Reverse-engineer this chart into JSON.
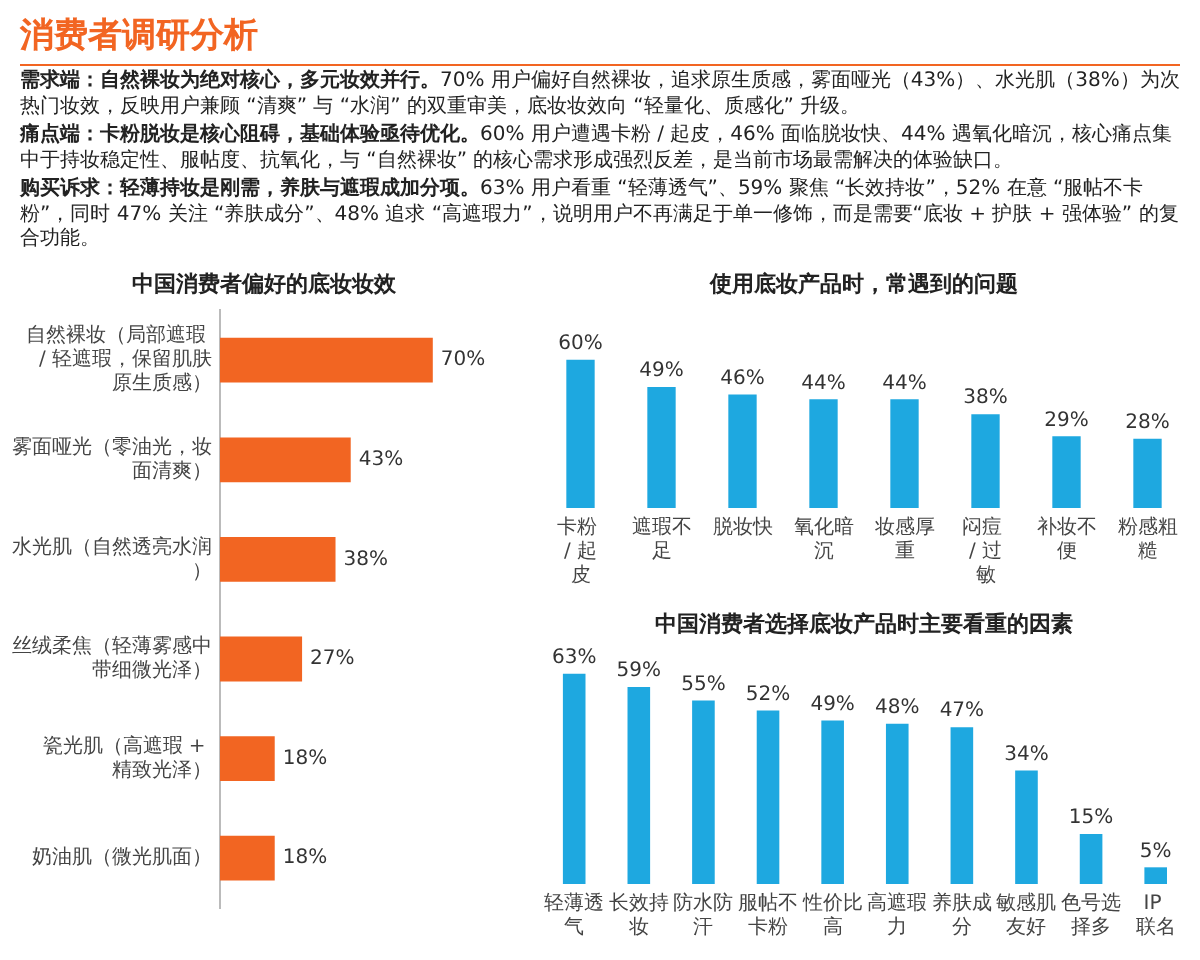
{
  "chart_data": [
    {
      "type": "other",
      "title": "消费者调研分析",
      "annotations": [
        "需求端：自然裸妆为绝对核心，多元妆效并行。",
        "70% 用户偏好自然裸妆，追求原生质感，雾面哑光（43%）、水光肌（38%）为次热门妆效，反映用户兼顾 “清爽” 与 “水润” 的双重审美，底妆妆效向 “轻量化、质感化” 升级。",
        "痛点端：卡粉脱妆是核心阻碍，基础体验亟待优化。",
        "60% 用户遭遇卡粉 / 起皮，46% 面临脱妆快、44% 遇氧化暗沉，核心痛点集中于持妆稳定性、服帖度、抗氧化，与 “自然裸妆” 的核心需求形成强烈反差，是当前市场最需解决的体验缺口。",
        "购买诉求：轻薄持妆是刚需，养肤与遮瑕成加分项。",
        "63% 用户看重 “轻薄透气”、59% 聚焦 “长效持妆”，52% 在意 “服帖不卡粉”，同时 47% 关注 “养肤成分”、48% 追求 “高遮瑕力”，说明用户不再满足于单一修饰，而是需要“底妆 + 护肤 + 强体验” 的复合功能。"
      ]
    },
    {
      "type": "bar",
      "orientation": "horizontal",
      "title": "中国消费者偏好的底妆妆效",
      "categories": [
        "自然裸妆（局部遮瑕 / 轻遮瑕，保留肌肤原生质感）",
        "雾面哑光（零油光，妆面清爽）",
        "水光肌（自然透亮水润）",
        "丝绒柔焦（轻薄雾感中带细微光泽）",
        "瓷光肌（高遮瑕 + 精致光泽）",
        "奶油肌（微光肌面）"
      ],
      "values": [
        70,
        43,
        38,
        27,
        18,
        18
      ],
      "value_labels": [
        "70%",
        "43%",
        "38%",
        "27%",
        "18%",
        "18%"
      ],
      "color": "#f26522",
      "legend": false
    },
    {
      "type": "bar",
      "title": "使用底妆产品时，常遇到的问题",
      "categories": [
        "卡粉 / 起皮",
        "遮瑕不足",
        "脱妆快",
        "氧化暗沉",
        "妆感厚重",
        "闷痘 / 过敏",
        "补妆不便",
        "粉感粗糙"
      ],
      "values": [
        60,
        49,
        46,
        44,
        44,
        38,
        29,
        28
      ],
      "value_labels": [
        "60%",
        "49%",
        "46%",
        "44%",
        "44%",
        "38%",
        "29%",
        "28%"
      ],
      "color": "#1ea8e0",
      "legend": false
    },
    {
      "type": "bar",
      "title": "中国消费者选择底妆产品时主要看重的因素",
      "categories": [
        "轻薄透气",
        "长效持妆",
        "防水防汗",
        "服帖不卡粉",
        "性价比高",
        "高遮瑕力",
        "养肤成分",
        "敏感肌友好",
        "色号选择多",
        "IP 联名"
      ],
      "values": [
        63,
        59,
        55,
        52,
        49,
        48,
        47,
        34,
        15,
        5
      ],
      "value_labels": [
        "63%",
        "59%",
        "55%",
        "52%",
        "49%",
        "48%",
        "47%",
        "34%",
        "15%",
        "5%"
      ],
      "color": "#1ea8e0",
      "legend": false
    }
  ]
}
